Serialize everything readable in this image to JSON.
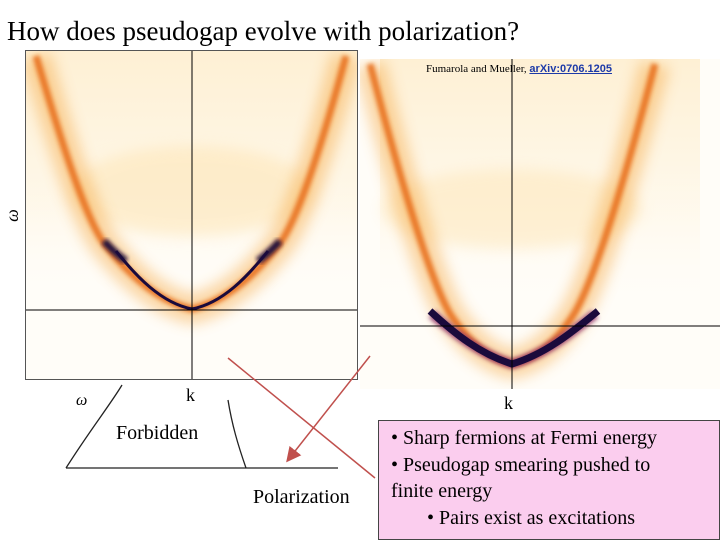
{
  "slide": {
    "title": "How does pseudogap evolve with polarization?",
    "citation": {
      "prefix": "Fumarola and Mueller, ",
      "link_text": "arXiv:0706.1205"
    },
    "left_plot": {
      "y_axis_label": "ω",
      "x_axis_label": "k"
    },
    "right_plot": {
      "x_axis_label": "k"
    },
    "phase_sketch": {
      "region_label": "Forbidden",
      "x_axis_label": "Polarization",
      "partial_axis_glyph": "ω"
    },
    "bullets": [
      "• Sharp fermions at Fermi energy",
      "• Pseudogap smearing pushed to",
      "finite energy",
      "• Pairs exist as excitations"
    ],
    "colors": {
      "arrow": "#c0504d",
      "bullet_box_bg": "#fbcdee",
      "spectral_peak": "#1a0a3c",
      "spectral_mid": "#f28a1e",
      "spectral_low": "#fde3b0"
    }
  }
}
